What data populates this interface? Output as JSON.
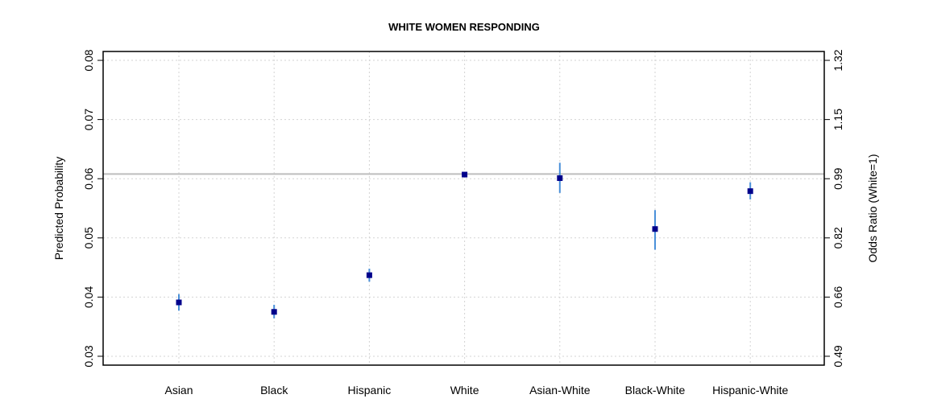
{
  "chart_data": {
    "type": "scatter",
    "title": "WHITE WOMEN RESPONDING",
    "xlabel": "",
    "ylabel": "Predicted Probability",
    "y2label": "Odds Ratio (White=1)",
    "categories": [
      "Asian",
      "Black",
      "Hispanic",
      "White",
      "Asian-White",
      "Black-White",
      "Hispanic-White"
    ],
    "values": [
      0.0391,
      0.0375,
      0.0437,
      0.0607,
      0.0601,
      0.0515,
      0.0579
    ],
    "ci_low": [
      0.0377,
      0.0364,
      0.0426,
      0.0605,
      0.0576,
      0.048,
      0.0565
    ],
    "ci_high": [
      0.0405,
      0.0387,
      0.0448,
      0.0609,
      0.0627,
      0.0547,
      0.0594
    ],
    "reference_line": 0.0608,
    "ylim": [
      0.0285,
      0.0815
    ],
    "yticks": [
      0.03,
      0.04,
      0.05,
      0.06,
      0.07,
      0.08
    ],
    "ytick_labels": [
      "0.03",
      "0.04",
      "0.05",
      "0.06",
      "0.07",
      "0.08"
    ],
    "y2tick_labels": [
      "0.49",
      "0.66",
      "0.82",
      "0.99",
      "1.15",
      "1.32"
    ],
    "grid": true,
    "colors": {
      "point": "#00008b",
      "errorbar": "#4a90d9",
      "reference": "#bebebe",
      "grid": "#d3d3d3"
    }
  }
}
